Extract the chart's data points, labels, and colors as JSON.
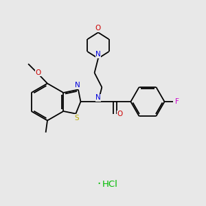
{
  "bg_color": "#e8e8e8",
  "bond_color": "#000000",
  "n_color": "#0000dd",
  "o_color": "#cc0000",
  "s_color": "#bbaa00",
  "f_color": "#cc00cc",
  "cl_color": "#00bb00",
  "lw": 1.3,
  "fs": 7.5,
  "xlim": [
    0,
    10
  ],
  "ylim": [
    0,
    10
  ],
  "figsize": [
    3.0,
    3.0
  ],
  "dpi": 100
}
